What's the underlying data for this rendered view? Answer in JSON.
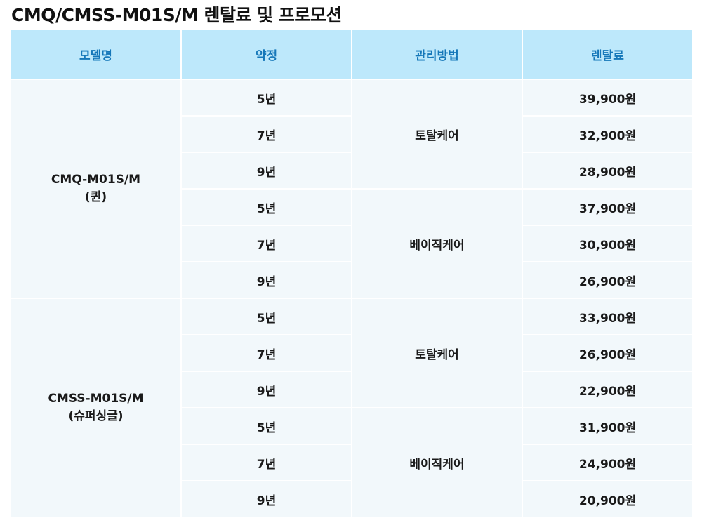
{
  "title": "CMQ/CMSS-M01S/M 렌탈료 및 프로모션",
  "headers": {
    "model": "모델명",
    "term": "약정",
    "care": "관리방법",
    "fee": "렌탈료"
  },
  "models": [
    {
      "name": "CMQ-M01S/M",
      "sub": "(퀸)",
      "care_groups": [
        {
          "care": "토탈케어",
          "rows": [
            {
              "term": "5년",
              "fee": "39,900원"
            },
            {
              "term": "7년",
              "fee": "32,900원"
            },
            {
              "term": "9년",
              "fee": "28,900원"
            }
          ]
        },
        {
          "care": "베이직케어",
          "rows": [
            {
              "term": "5년",
              "fee": "37,900원"
            },
            {
              "term": "7년",
              "fee": "30,900원"
            },
            {
              "term": "9년",
              "fee": "26,900원"
            }
          ]
        }
      ]
    },
    {
      "name": "CMSS-M01S/M",
      "sub": "(슈퍼싱글)",
      "care_groups": [
        {
          "care": "토탈케어",
          "rows": [
            {
              "term": "5년",
              "fee": "33,900원"
            },
            {
              "term": "7년",
              "fee": "26,900원"
            },
            {
              "term": "9년",
              "fee": "22,900원"
            }
          ]
        },
        {
          "care": "베이직케어",
          "rows": [
            {
              "term": "5년",
              "fee": "31,900원"
            },
            {
              "term": "7년",
              "fee": "24,900원"
            },
            {
              "term": "9년",
              "fee": "20,900원"
            }
          ]
        }
      ]
    }
  ]
}
